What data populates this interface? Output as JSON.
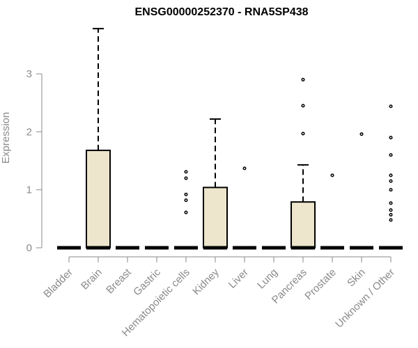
{
  "chart_data": {
    "type": "box",
    "title": "ENSG00000252370 - RNA5SP438",
    "xlabel": "",
    "ylabel": "Expression",
    "ylim": [
      0,
      3.9
    ],
    "yticks": [
      0,
      1,
      2,
      3
    ],
    "box_fill": "#ede6cc",
    "categories": [
      "Bladder",
      "Brain",
      "Breast",
      "Gastric",
      "Hematopoietic cells",
      "Kidney",
      "Liver",
      "Lung",
      "Pancreas",
      "Prostate",
      "Skin",
      "Unknown / Other"
    ],
    "series": [
      {
        "category": "Bladder",
        "q1": 0,
        "median": 0,
        "q3": 0,
        "whisker_low": 0,
        "whisker_high": 0,
        "outliers": []
      },
      {
        "category": "Brain",
        "q1": 0,
        "median": 0,
        "q3": 1.68,
        "whisker_low": 0,
        "whisker_high": 3.78,
        "outliers": []
      },
      {
        "category": "Breast",
        "q1": 0,
        "median": 0,
        "q3": 0,
        "whisker_low": 0,
        "whisker_high": 0,
        "outliers": []
      },
      {
        "category": "Gastric",
        "q1": 0,
        "median": 0,
        "q3": 0,
        "whisker_low": 0,
        "whisker_high": 0,
        "outliers": []
      },
      {
        "category": "Hematopoietic cells",
        "q1": 0,
        "median": 0,
        "q3": 0,
        "whisker_low": 0,
        "whisker_high": 0,
        "outliers": [
          1.31,
          1.2,
          0.92,
          0.82,
          0.61
        ]
      },
      {
        "category": "Kidney",
        "q1": 0,
        "median": 0,
        "q3": 1.04,
        "whisker_low": 0,
        "whisker_high": 2.22,
        "outliers": []
      },
      {
        "category": "Liver",
        "q1": 0,
        "median": 0,
        "q3": 0,
        "whisker_low": 0,
        "whisker_high": 0,
        "outliers": [
          1.37
        ]
      },
      {
        "category": "Lung",
        "q1": 0,
        "median": 0,
        "q3": 0,
        "whisker_low": 0,
        "whisker_high": 0,
        "outliers": []
      },
      {
        "category": "Pancreas",
        "q1": 0,
        "median": 0,
        "q3": 0.79,
        "whisker_low": 0,
        "whisker_high": 1.43,
        "outliers": [
          2.9,
          2.45,
          1.97
        ]
      },
      {
        "category": "Prostate",
        "q1": 0,
        "median": 0,
        "q3": 0,
        "whisker_low": 0,
        "whisker_high": 0,
        "outliers": [
          1.25
        ]
      },
      {
        "category": "Skin",
        "q1": 0,
        "median": 0,
        "q3": 0,
        "whisker_low": 0,
        "whisker_high": 0,
        "outliers": [
          1.96
        ]
      },
      {
        "category": "Unknown / Other",
        "q1": 0,
        "median": 0,
        "q3": 0,
        "whisker_low": 0,
        "whisker_high": 0,
        "outliers": [
          2.44,
          1.9,
          1.6,
          1.25,
          1.15,
          1.0,
          0.77,
          0.65,
          0.57,
          0.48
        ]
      }
    ],
    "grid": false,
    "legend": "none"
  }
}
